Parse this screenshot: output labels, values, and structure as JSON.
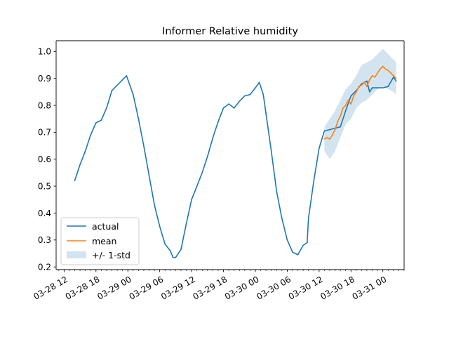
{
  "chart_data": {
    "type": "line",
    "title": "Informer Relative humidity",
    "xlabel": "",
    "ylabel": "",
    "x_axis": {
      "type": "datetime",
      "range": [
        "2026-03-28T10:30",
        "2026-03-31T04:00"
      ],
      "major_ticks": [
        {
          "t": "2026-03-28T12:00",
          "label": "03-28 12"
        },
        {
          "t": "2026-03-28T18:00",
          "label": "03-28 18"
        },
        {
          "t": "2026-03-29T00:00",
          "label": "03-29 00"
        },
        {
          "t": "2026-03-29T06:00",
          "label": "03-29 06"
        },
        {
          "t": "2026-03-29T12:00",
          "label": "03-29 12"
        },
        {
          "t": "2026-03-29T18:00",
          "label": "03-29 18"
        },
        {
          "t": "2026-03-30T00:00",
          "label": "03-30 00"
        },
        {
          "t": "2026-03-30T06:00",
          "label": "03-30 06"
        },
        {
          "t": "2026-03-30T12:00",
          "label": "03-30 12"
        },
        {
          "t": "2026-03-30T18:00",
          "label": "03-30 18"
        },
        {
          "t": "2026-03-31T00:00",
          "label": "03-31 00"
        }
      ],
      "minor_tick_hours": 1
    },
    "y_axis": {
      "range": [
        0.19,
        1.04
      ],
      "ticks": [
        0.2,
        0.3,
        0.4,
        0.5,
        0.6,
        0.7,
        0.8,
        0.9,
        1.0
      ],
      "tick_labels": [
        "0.2",
        "0.3",
        "0.4",
        "0.5",
        "0.6",
        "0.7",
        "0.8",
        "0.9",
        "1.0"
      ]
    },
    "grid": false,
    "legend": {
      "placement": "lower-left",
      "entries": [
        {
          "label": "actual",
          "kind": "line",
          "color": "#1f77b4"
        },
        {
          "label": "mean",
          "kind": "line",
          "color": "#ff7f0e"
        },
        {
          "label": "+/- 1-std",
          "kind": "band",
          "color": "#1f77b4",
          "alpha": 0.2
        }
      ]
    },
    "series": [
      {
        "name": "actual",
        "color": "#1f77b4",
        "points": [
          [
            "2026-03-28T14:00",
            0.52
          ],
          [
            "2026-03-28T15:00",
            0.58
          ],
          [
            "2026-03-28T16:00",
            0.63
          ],
          [
            "2026-03-28T17:00",
            0.69
          ],
          [
            "2026-03-28T18:00",
            0.735
          ],
          [
            "2026-03-28T19:00",
            0.745
          ],
          [
            "2026-03-28T20:00",
            0.79
          ],
          [
            "2026-03-28T21:00",
            0.855
          ],
          [
            "2026-03-28T22:00",
            0.875
          ],
          [
            "2026-03-28T23:00",
            0.895
          ],
          [
            "2026-03-28T23:45",
            0.91
          ],
          [
            "2026-03-29T01:00",
            0.84
          ],
          [
            "2026-03-29T02:00",
            0.75
          ],
          [
            "2026-03-29T03:00",
            0.65
          ],
          [
            "2026-03-29T04:00",
            0.54
          ],
          [
            "2026-03-29T05:00",
            0.43
          ],
          [
            "2026-03-29T06:00",
            0.35
          ],
          [
            "2026-03-29T07:00",
            0.285
          ],
          [
            "2026-03-29T08:00",
            0.26
          ],
          [
            "2026-03-29T08:30",
            0.235
          ],
          [
            "2026-03-29T09:00",
            0.235
          ],
          [
            "2026-03-29T10:00",
            0.265
          ],
          [
            "2026-03-29T11:00",
            0.36
          ],
          [
            "2026-03-29T12:00",
            0.45
          ],
          [
            "2026-03-29T13:00",
            0.5
          ],
          [
            "2026-03-29T14:00",
            0.55
          ],
          [
            "2026-03-29T15:00",
            0.61
          ],
          [
            "2026-03-29T16:00",
            0.68
          ],
          [
            "2026-03-29T17:00",
            0.74
          ],
          [
            "2026-03-29T18:00",
            0.79
          ],
          [
            "2026-03-29T19:00",
            0.805
          ],
          [
            "2026-03-29T20:00",
            0.79
          ],
          [
            "2026-03-29T21:00",
            0.815
          ],
          [
            "2026-03-29T22:00",
            0.835
          ],
          [
            "2026-03-29T23:00",
            0.84
          ],
          [
            "2026-03-30T00:00",
            0.865
          ],
          [
            "2026-03-30T00:45",
            0.885
          ],
          [
            "2026-03-30T01:30",
            0.84
          ],
          [
            "2026-03-30T02:00",
            0.77
          ],
          [
            "2026-03-30T03:00",
            0.63
          ],
          [
            "2026-03-30T04:00",
            0.48
          ],
          [
            "2026-03-30T05:00",
            0.38
          ],
          [
            "2026-03-30T06:00",
            0.3
          ],
          [
            "2026-03-30T07:00",
            0.255
          ],
          [
            "2026-03-30T08:00",
            0.245
          ],
          [
            "2026-03-30T09:00",
            0.28
          ],
          [
            "2026-03-30T09:45",
            0.29
          ],
          [
            "2026-03-30T10:00",
            0.38
          ],
          [
            "2026-03-30T11:00",
            0.52
          ],
          [
            "2026-03-30T12:00",
            0.64
          ],
          [
            "2026-03-30T13:00",
            0.705
          ],
          [
            "2026-03-30T14:00",
            0.71
          ],
          [
            "2026-03-30T15:00",
            0.715
          ],
          [
            "2026-03-30T16:00",
            0.72
          ],
          [
            "2026-03-30T17:00",
            0.78
          ],
          [
            "2026-03-30T18:00",
            0.835
          ],
          [
            "2026-03-30T19:00",
            0.855
          ],
          [
            "2026-03-30T20:00",
            0.88
          ],
          [
            "2026-03-30T21:00",
            0.89
          ],
          [
            "2026-03-30T21:30",
            0.85
          ],
          [
            "2026-03-30T22:00",
            0.865
          ],
          [
            "2026-03-30T23:00",
            0.865
          ],
          [
            "2026-03-31T00:00",
            0.865
          ],
          [
            "2026-03-31T01:00",
            0.87
          ],
          [
            "2026-03-31T02:00",
            0.905
          ],
          [
            "2026-03-31T02:30",
            0.89
          ]
        ]
      },
      {
        "name": "mean",
        "color": "#ff7f0e",
        "points": [
          [
            "2026-03-30T13:00",
            0.675
          ],
          [
            "2026-03-30T13:30",
            0.68
          ],
          [
            "2026-03-30T14:00",
            0.675
          ],
          [
            "2026-03-30T14:30",
            0.69
          ],
          [
            "2026-03-30T15:00",
            0.71
          ],
          [
            "2026-03-30T15:30",
            0.74
          ],
          [
            "2026-03-30T16:00",
            0.76
          ],
          [
            "2026-03-30T16:30",
            0.79
          ],
          [
            "2026-03-30T17:00",
            0.8
          ],
          [
            "2026-03-30T17:30",
            0.82
          ],
          [
            "2026-03-30T18:00",
            0.805
          ],
          [
            "2026-03-30T18:30",
            0.835
          ],
          [
            "2026-03-30T19:00",
            0.85
          ],
          [
            "2026-03-30T19:30",
            0.87
          ],
          [
            "2026-03-30T20:00",
            0.875
          ],
          [
            "2026-03-30T20:30",
            0.885
          ],
          [
            "2026-03-30T21:00",
            0.87
          ],
          [
            "2026-03-30T21:30",
            0.895
          ],
          [
            "2026-03-30T22:00",
            0.91
          ],
          [
            "2026-03-30T22:30",
            0.905
          ],
          [
            "2026-03-30T23:00",
            0.92
          ],
          [
            "2026-03-30T23:30",
            0.935
          ],
          [
            "2026-03-31T00:00",
            0.945
          ],
          [
            "2026-03-31T00:30",
            0.935
          ],
          [
            "2026-03-31T01:00",
            0.93
          ],
          [
            "2026-03-31T01:30",
            0.92
          ],
          [
            "2026-03-31T02:00",
            0.91
          ],
          [
            "2026-03-31T02:30",
            0.9
          ]
        ]
      }
    ],
    "band": {
      "name": "+/- 1-std",
      "color": "#1f77b4",
      "alpha": 0.2,
      "points": [
        [
          "2026-03-30T13:00",
          0.63,
          0.72
        ],
        [
          "2026-03-30T14:00",
          0.6,
          0.75
        ],
        [
          "2026-03-30T15:00",
          0.63,
          0.78
        ],
        [
          "2026-03-30T16:00",
          0.68,
          0.82
        ],
        [
          "2026-03-30T17:00",
          0.73,
          0.86
        ],
        [
          "2026-03-30T18:00",
          0.75,
          0.88
        ],
        [
          "2026-03-30T19:00",
          0.79,
          0.91
        ],
        [
          "2026-03-30T20:00",
          0.81,
          0.95
        ],
        [
          "2026-03-30T21:00",
          0.82,
          0.96
        ],
        [
          "2026-03-30T22:00",
          0.84,
          0.97
        ],
        [
          "2026-03-30T23:00",
          0.86,
          0.99
        ],
        [
          "2026-03-31T00:00",
          0.87,
          1.01
        ],
        [
          "2026-03-31T01:00",
          0.86,
          0.99
        ],
        [
          "2026-03-31T02:00",
          0.85,
          0.97
        ],
        [
          "2026-03-31T02:30",
          0.84,
          0.96
        ]
      ]
    }
  }
}
